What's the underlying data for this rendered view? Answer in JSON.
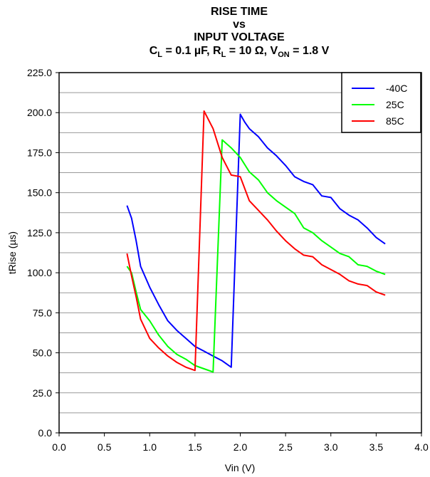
{
  "chart_data": {
    "type": "line",
    "title_lines": [
      "RISE TIME",
      "vs",
      "INPUT VOLTAGE"
    ],
    "subtitle": {
      "cl_label": "C",
      "cl_sub": "L",
      "cl_rest": " = 0.1 µF, ",
      "rl_label": "R",
      "rl_sub": "L",
      "rl_rest": " = 10 Ω, ",
      "von_label": "V",
      "von_sub": "ON",
      "von_rest": " = 1.8 V"
    },
    "xlabel": "Vin (V)",
    "ylabel": "tRise (µs)",
    "xlim": [
      0,
      4
    ],
    "ylim": [
      0,
      225
    ],
    "xticks": [
      "0.0",
      "0.5",
      "1.0",
      "1.5",
      "2.0",
      "2.5",
      "3.0",
      "3.5",
      "4.0"
    ],
    "yticks": [
      "0.0",
      "25.0",
      "50.0",
      "75.0",
      "100.0",
      "125.0",
      "150.0",
      "175.0",
      "200.0",
      "225.0"
    ],
    "grid": "horizontal",
    "legend_position": "top-right",
    "series": [
      {
        "name": "-40C",
        "color": "#0000ff",
        "x": [
          0.75,
          0.8,
          0.85,
          0.9,
          1.0,
          1.1,
          1.2,
          1.3,
          1.4,
          1.5,
          1.6,
          1.7,
          1.8,
          1.9,
          2.0,
          2.05,
          2.1,
          2.2,
          2.3,
          2.4,
          2.5,
          2.6,
          2.7,
          2.8,
          2.9,
          3.0,
          3.1,
          3.2,
          3.3,
          3.4,
          3.5,
          3.6
        ],
        "y": [
          142,
          134,
          120,
          104,
          91,
          80,
          70,
          64,
          59,
          54,
          51,
          48,
          45,
          41,
          199,
          194,
          190,
          185,
          178,
          173,
          167,
          160,
          157,
          155,
          148,
          147,
          140,
          136,
          133,
          128,
          122,
          118
        ]
      },
      {
        "name": "25C",
        "color": "#00ff00",
        "x": [
          0.75,
          0.8,
          0.85,
          0.9,
          1.0,
          1.1,
          1.2,
          1.3,
          1.4,
          1.5,
          1.6,
          1.7,
          1.8,
          1.9,
          2.0,
          2.1,
          2.2,
          2.3,
          2.4,
          2.5,
          2.6,
          2.7,
          2.8,
          2.9,
          3.0,
          3.1,
          3.2,
          3.3,
          3.4,
          3.5,
          3.6
        ],
        "y": [
          104,
          100,
          88,
          77,
          70,
          61,
          54,
          49,
          46,
          42,
          40,
          38,
          183,
          178,
          172,
          163,
          158,
          150,
          145,
          141,
          137,
          128,
          125,
          120,
          116,
          112,
          110,
          105,
          104,
          101,
          99
        ]
      },
      {
        "name": "85C",
        "color": "#ff0000",
        "x": [
          0.75,
          0.8,
          0.85,
          0.9,
          1.0,
          1.1,
          1.2,
          1.3,
          1.4,
          1.5,
          1.6,
          1.7,
          1.8,
          1.9,
          2.0,
          2.1,
          2.2,
          2.3,
          2.4,
          2.5,
          2.6,
          2.7,
          2.8,
          2.9,
          3.0,
          3.1,
          3.2,
          3.3,
          3.4,
          3.5,
          3.6
        ],
        "y": [
          112,
          98,
          85,
          71,
          59,
          53,
          48,
          44,
          41,
          39,
          201,
          190,
          172,
          161,
          160,
          145,
          139,
          133,
          126,
          120,
          115,
          111,
          110,
          105,
          102,
          99,
          95,
          93,
          92,
          88,
          86
        ]
      }
    ]
  }
}
